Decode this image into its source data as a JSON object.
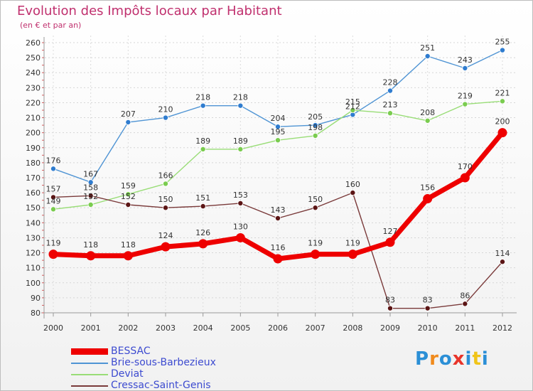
{
  "header": {
    "title": "Evolution des Impôts locaux par Habitant",
    "subtitle": "(en € et par an)"
  },
  "brand": {
    "letters": [
      "P",
      "r",
      "o",
      "x",
      "i",
      "t",
      "i"
    ],
    "colors": [
      "#2b8fd6",
      "#f08a1c",
      "#2b8fd6",
      "#e8342a",
      "#2b8fd6",
      "#f0c419",
      "#2b8fd6"
    ]
  },
  "chart_data": {
    "type": "line",
    "title": "Evolution des Impôts locaux par Habitant",
    "subtitle": "(en € et par an)",
    "xlabel": "",
    "ylabel": "",
    "ylim": [
      80,
      260
    ],
    "yticks": [
      80,
      90,
      100,
      110,
      120,
      130,
      140,
      150,
      160,
      170,
      180,
      190,
      200,
      210,
      220,
      230,
      240,
      250,
      260
    ],
    "grid": true,
    "legend_position": "bottom-left",
    "x": [
      "2000",
      "2001",
      "2002",
      "2003",
      "2004",
      "2005",
      "2006",
      "2007",
      "2008",
      "2009",
      "2010",
      "2011",
      "2012"
    ],
    "series": [
      {
        "name": "BESSAC",
        "color": "#ee0000",
        "emphasis": "bold",
        "values": [
          119,
          118,
          118,
          124,
          126,
          130,
          116,
          119,
          119,
          127,
          156,
          170,
          200
        ],
        "labels": [
          "119",
          "118",
          "118",
          "124",
          "126",
          "130",
          "116",
          "119",
          "119",
          "127",
          "156",
          "170",
          "200"
        ]
      },
      {
        "name": "Brie-sous-Barbezieux",
        "color": "#4f94d4",
        "marker_color": "#2f7ccf",
        "emphasis": "normal",
        "values": [
          176,
          167,
          207,
          210,
          218,
          218,
          204,
          205,
          212,
          228,
          251,
          243,
          255
        ],
        "labels": [
          "176",
          "167",
          "207",
          "210",
          "218",
          "218",
          "204",
          "205",
          "212",
          "228",
          "251",
          "243",
          "255"
        ]
      },
      {
        "name": "Deviat",
        "color": "#99dd77",
        "marker_color": "#7acc4f",
        "emphasis": "normal",
        "values": [
          149,
          152,
          159,
          166,
          189,
          189,
          195,
          198,
          215,
          213,
          208,
          219,
          221
        ],
        "labels": [
          "149",
          "152",
          "159",
          "166",
          "189",
          "189",
          "195",
          "198",
          "215",
          "213",
          "208",
          "219",
          "221"
        ]
      },
      {
        "name": "Cressac-Saint-Genis",
        "color": "#7a3a3a",
        "marker_color": "#5b1515",
        "emphasis": "normal",
        "values": [
          157,
          158,
          152,
          150,
          151,
          153,
          143,
          150,
          160,
          83,
          83,
          86,
          114
        ],
        "labels": [
          "157",
          "158",
          "152",
          "150",
          "151",
          "153",
          "143",
          "150",
          "160",
          "83",
          "83",
          "86",
          "114"
        ]
      }
    ]
  }
}
